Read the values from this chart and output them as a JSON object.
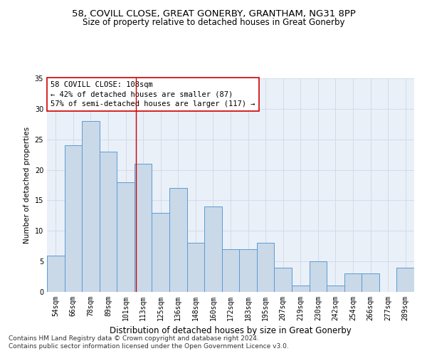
{
  "title": "58, COVILL CLOSE, GREAT GONERBY, GRANTHAM, NG31 8PP",
  "subtitle": "Size of property relative to detached houses in Great Gonerby",
  "xlabel": "Distribution of detached houses by size in Great Gonerby",
  "ylabel": "Number of detached properties",
  "categories": [
    "54sqm",
    "66sqm",
    "78sqm",
    "89sqm",
    "101sqm",
    "113sqm",
    "125sqm",
    "136sqm",
    "148sqm",
    "160sqm",
    "172sqm",
    "183sqm",
    "195sqm",
    "207sqm",
    "219sqm",
    "230sqm",
    "242sqm",
    "254sqm",
    "266sqm",
    "277sqm",
    "289sqm"
  ],
  "values": [
    6,
    24,
    28,
    23,
    18,
    21,
    13,
    17,
    8,
    14,
    7,
    7,
    8,
    4,
    1,
    5,
    1,
    3,
    3,
    0,
    4
  ],
  "bar_color": "#c9d9e8",
  "bar_edge_color": "#5b9bd5",
  "property_size": 108,
  "annotation_text_line1": "58 COVILL CLOSE: 108sqm",
  "annotation_text_line2": "← 42% of detached houses are smaller (87)",
  "annotation_text_line3": "57% of semi-detached houses are larger (117) →",
  "annotation_box_color": "#ffffff",
  "annotation_box_edge": "#cc0000",
  "vline_color": "#cc0000",
  "grid_color": "#d0d8e8",
  "background_color": "#eaf0f8",
  "ylim": [
    0,
    35
  ],
  "yticks": [
    0,
    5,
    10,
    15,
    20,
    25,
    30,
    35
  ],
  "footnote_line1": "Contains HM Land Registry data © Crown copyright and database right 2024.",
  "footnote_line2": "Contains public sector information licensed under the Open Government Licence v3.0.",
  "title_fontsize": 9.5,
  "subtitle_fontsize": 8.5,
  "xlabel_fontsize": 8.5,
  "ylabel_fontsize": 7.5,
  "tick_fontsize": 7,
  "annotation_fontsize": 7.5,
  "footnote_fontsize": 6.5
}
